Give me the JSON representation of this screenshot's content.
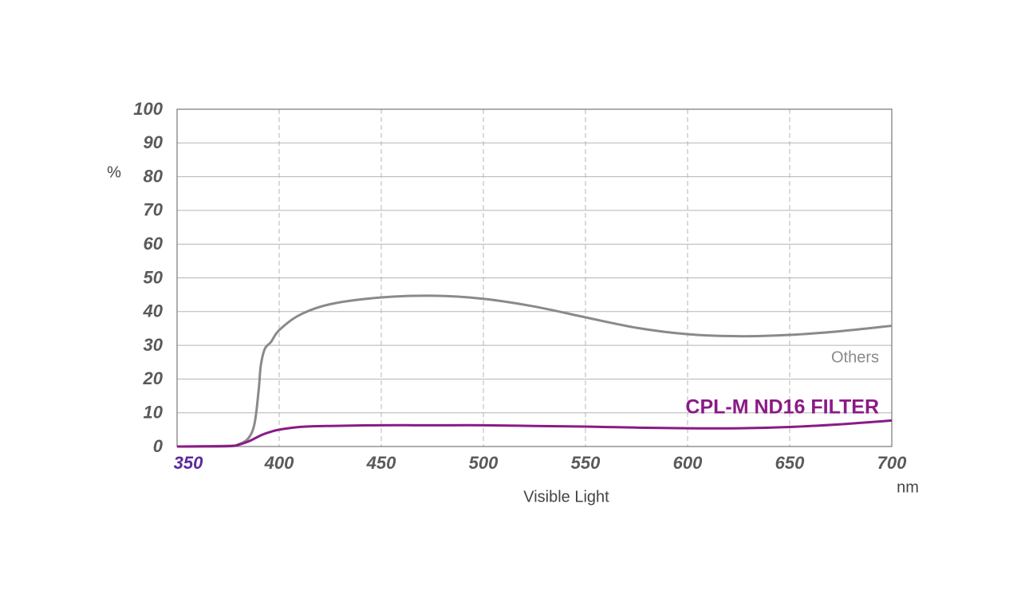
{
  "chart_data": {
    "type": "line",
    "y_label": "%",
    "x_label": "Visible Light",
    "x_unit": "nm",
    "x": [
      350,
      375,
      380,
      385,
      388,
      390,
      391,
      393,
      396,
      400,
      410,
      425,
      450,
      475,
      500,
      525,
      550,
      575,
      600,
      625,
      650,
      675,
      700
    ],
    "series": [
      {
        "name": "Others",
        "color": "#8a8a8a",
        "values": [
          0,
          0.2,
          0.6,
          2.5,
          7,
          17,
          24,
          29,
          31,
          34.5,
          39,
          42.2,
          44.2,
          44.7,
          43.8,
          41.5,
          38.3,
          35.2,
          33.3,
          32.7,
          33.1,
          34.2,
          35.8
        ]
      },
      {
        "name": "CPL-M ND16 FILTER",
        "color": "#8b1a86",
        "values": [
          0,
          0.1,
          0.5,
          1.5,
          2.4,
          3,
          3.3,
          3.8,
          4.4,
          5,
          5.8,
          6.1,
          6.3,
          6.3,
          6.3,
          6.1,
          5.9,
          5.6,
          5.4,
          5.4,
          5.8,
          6.6,
          7.7
        ]
      }
    ],
    "xlim": [
      350,
      700
    ],
    "xticks": [
      350,
      400,
      450,
      500,
      550,
      600,
      650,
      700
    ],
    "ylim": [
      0,
      100
    ],
    "yticks": [
      0,
      10,
      20,
      30,
      40,
      50,
      60,
      70,
      80,
      90,
      100
    ],
    "grid": true
  }
}
